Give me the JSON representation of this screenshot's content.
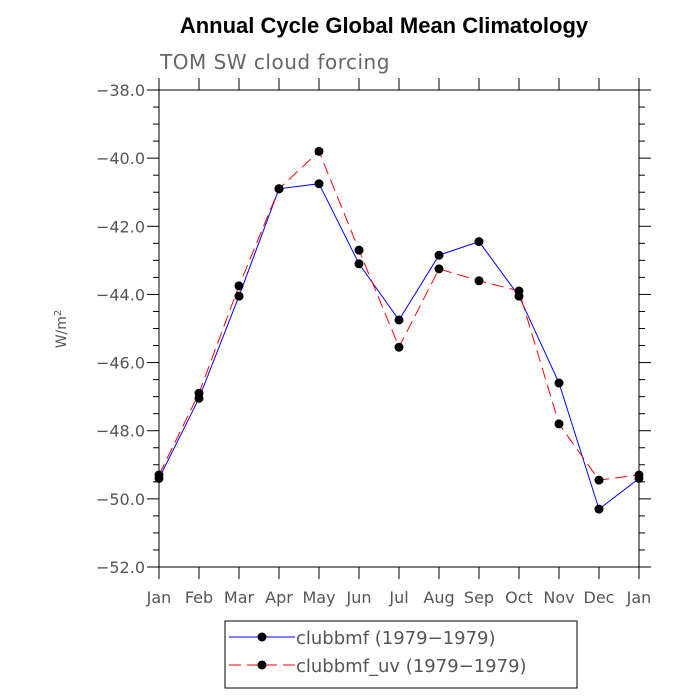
{
  "chart_data": {
    "type": "line",
    "title": "Annual Cycle Global Mean Climatology",
    "subtitle": "TOM SW cloud forcing",
    "xlabel": "",
    "ylabel": "W/m",
    "ylabel_superscript": "2",
    "categories": [
      "Jan",
      "Feb",
      "Mar",
      "Apr",
      "May",
      "Jun",
      "Jul",
      "Aug",
      "Sep",
      "Oct",
      "Nov",
      "Dec",
      "Jan"
    ],
    "ylim": [
      -52.0,
      -38.0
    ],
    "yticks": [
      -38.0,
      -40.0,
      -42.0,
      -44.0,
      -46.0,
      -48.0,
      -50.0,
      -52.0
    ],
    "ytick_labels": [
      "−38.0",
      "−40.0",
      "−42.0",
      "−44.0",
      "−46.0",
      "−48.0",
      "−50.0",
      "−52.0"
    ],
    "series": [
      {
        "name": "clubbmf (1979−1979)",
        "color": "#0000ff",
        "dash": "solid",
        "values": [
          -49.4,
          -47.05,
          -44.05,
          -40.9,
          -40.75,
          -43.1,
          -44.75,
          -42.85,
          -42.45,
          -44.05,
          -46.6,
          -50.3,
          -49.4
        ]
      },
      {
        "name": "clubbmf_uv (1979−1979)",
        "color": "#ff0000",
        "dash": "dashed",
        "values": [
          -49.3,
          -46.9,
          -43.75,
          -40.9,
          -39.8,
          -42.7,
          -45.55,
          -43.25,
          -43.6,
          -43.9,
          -47.8,
          -49.45,
          -49.3
        ]
      }
    ],
    "legend_position": "bottom"
  }
}
